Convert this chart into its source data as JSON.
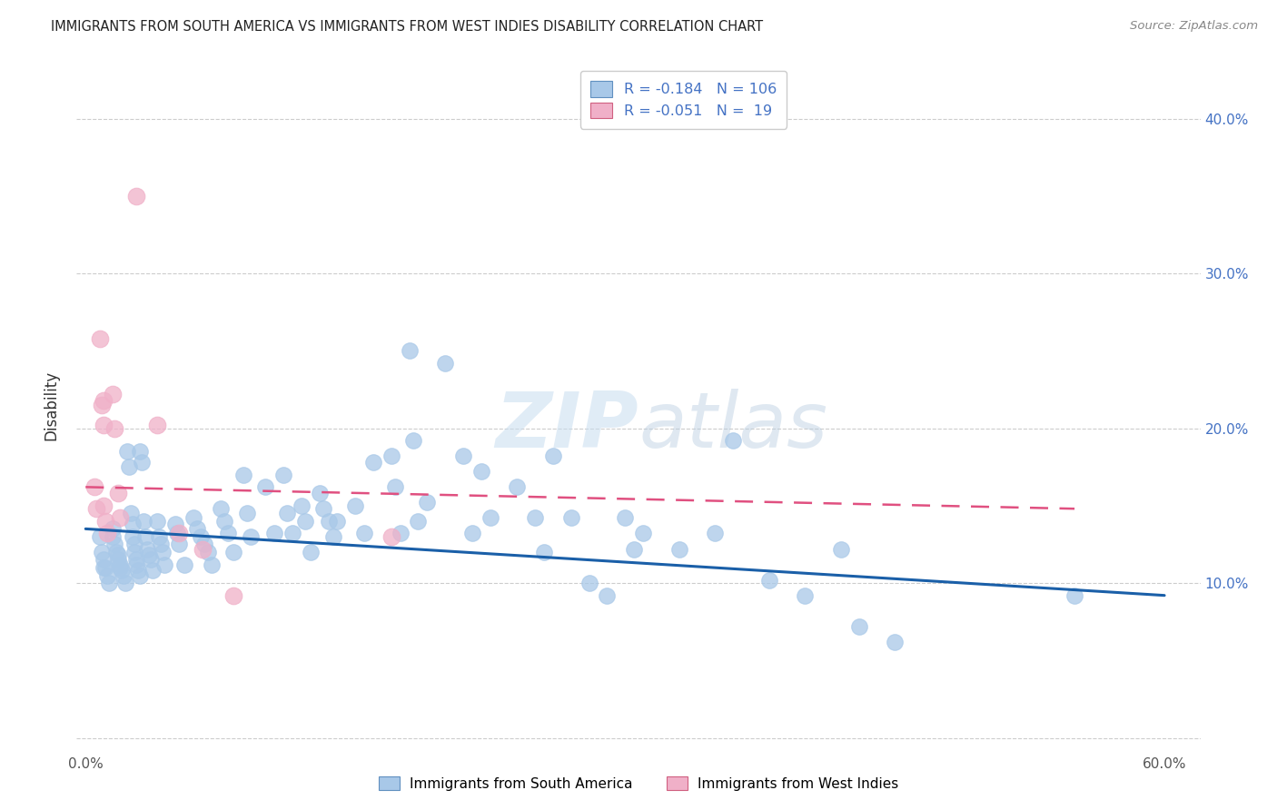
{
  "title": "IMMIGRANTS FROM SOUTH AMERICA VS IMMIGRANTS FROM WEST INDIES DISABILITY CORRELATION CHART",
  "source": "Source: ZipAtlas.com",
  "ylabel": "Disability",
  "y_ticks": [
    0.0,
    0.1,
    0.2,
    0.3,
    0.4
  ],
  "y_tick_labels": [
    "",
    "10.0%",
    "20.0%",
    "30.0%",
    "40.0%"
  ],
  "x_ticks": [
    0.0,
    0.1,
    0.2,
    0.3,
    0.4,
    0.5,
    0.6
  ],
  "x_tick_labels_show": [
    "0.0%",
    "60.0%"
  ],
  "xlim": [
    -0.005,
    0.62
  ],
  "ylim": [
    -0.01,
    0.44
  ],
  "legend_label1": "Immigrants from South America",
  "legend_label2": "Immigrants from West Indies",
  "R1": "-0.184",
  "N1": "106",
  "R2": "-0.051",
  "N2": "19",
  "color_blue": "#a8c8e8",
  "color_pink": "#f0b0c8",
  "trend_blue": "#1a5fa8",
  "trend_pink": "#e05080",
  "watermark_color": "#dce8f4",
  "blue_scatter_x": [
    0.008,
    0.009,
    0.01,
    0.01,
    0.011,
    0.012,
    0.013,
    0.015,
    0.015,
    0.016,
    0.017,
    0.018,
    0.018,
    0.019,
    0.019,
    0.02,
    0.021,
    0.022,
    0.023,
    0.024,
    0.025,
    0.026,
    0.026,
    0.027,
    0.027,
    0.028,
    0.028,
    0.029,
    0.03,
    0.03,
    0.031,
    0.032,
    0.033,
    0.034,
    0.035,
    0.036,
    0.037,
    0.04,
    0.041,
    0.042,
    0.043,
    0.044,
    0.05,
    0.051,
    0.052,
    0.055,
    0.06,
    0.062,
    0.064,
    0.066,
    0.068,
    0.07,
    0.075,
    0.077,
    0.079,
    0.082,
    0.088,
    0.09,
    0.092,
    0.1,
    0.105,
    0.11,
    0.112,
    0.115,
    0.12,
    0.122,
    0.125,
    0.13,
    0.132,
    0.135,
    0.138,
    0.14,
    0.15,
    0.155,
    0.16,
    0.17,
    0.172,
    0.175,
    0.18,
    0.182,
    0.185,
    0.19,
    0.2,
    0.21,
    0.215,
    0.22,
    0.225,
    0.24,
    0.25,
    0.255,
    0.26,
    0.27,
    0.28,
    0.29,
    0.3,
    0.305,
    0.31,
    0.33,
    0.35,
    0.36,
    0.38,
    0.4,
    0.42,
    0.43,
    0.45,
    0.55
  ],
  "blue_scatter_y": [
    0.13,
    0.12,
    0.115,
    0.11,
    0.11,
    0.105,
    0.1,
    0.135,
    0.13,
    0.125,
    0.12,
    0.118,
    0.115,
    0.112,
    0.11,
    0.108,
    0.105,
    0.1,
    0.185,
    0.175,
    0.145,
    0.138,
    0.13,
    0.125,
    0.12,
    0.115,
    0.112,
    0.108,
    0.105,
    0.185,
    0.178,
    0.14,
    0.13,
    0.122,
    0.118,
    0.115,
    0.108,
    0.14,
    0.13,
    0.125,
    0.12,
    0.112,
    0.138,
    0.132,
    0.125,
    0.112,
    0.142,
    0.135,
    0.13,
    0.125,
    0.12,
    0.112,
    0.148,
    0.14,
    0.132,
    0.12,
    0.17,
    0.145,
    0.13,
    0.162,
    0.132,
    0.17,
    0.145,
    0.132,
    0.15,
    0.14,
    0.12,
    0.158,
    0.148,
    0.14,
    0.13,
    0.14,
    0.15,
    0.132,
    0.178,
    0.182,
    0.162,
    0.132,
    0.25,
    0.192,
    0.14,
    0.152,
    0.242,
    0.182,
    0.132,
    0.172,
    0.142,
    0.162,
    0.142,
    0.12,
    0.182,
    0.142,
    0.1,
    0.092,
    0.142,
    0.122,
    0.132,
    0.122,
    0.132,
    0.192,
    0.102,
    0.092,
    0.122,
    0.072,
    0.062,
    0.092
  ],
  "pink_scatter_x": [
    0.005,
    0.006,
    0.008,
    0.009,
    0.01,
    0.01,
    0.01,
    0.011,
    0.012,
    0.015,
    0.016,
    0.018,
    0.019,
    0.028,
    0.04,
    0.052,
    0.065,
    0.082,
    0.17
  ],
  "pink_scatter_y": [
    0.162,
    0.148,
    0.258,
    0.215,
    0.218,
    0.202,
    0.15,
    0.14,
    0.132,
    0.222,
    0.2,
    0.158,
    0.142,
    0.35,
    0.202,
    0.132,
    0.122,
    0.092,
    0.13
  ],
  "blue_trend_x": [
    0.0,
    0.6
  ],
  "blue_trend_y": [
    0.135,
    0.092
  ],
  "pink_trend_x": [
    0.0,
    0.55
  ],
  "pink_trend_y": [
    0.162,
    0.148
  ]
}
